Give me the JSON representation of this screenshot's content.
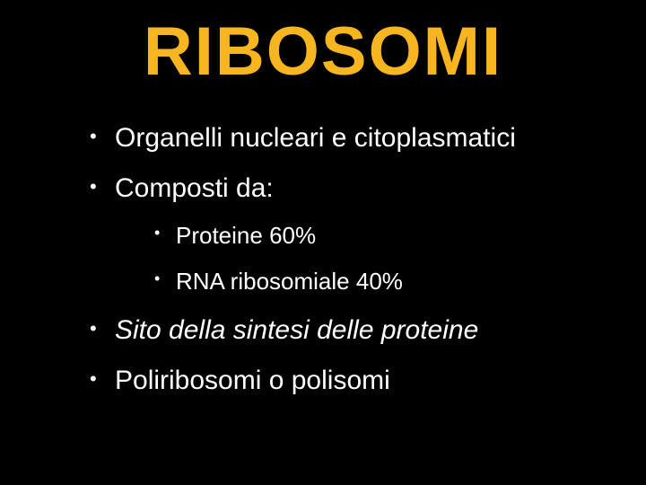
{
  "slide": {
    "background_color": "#000000",
    "title": {
      "text": "RIBOSOMI",
      "color": "#f7b520",
      "fontsize": 76,
      "font_family": "Comic Sans MS",
      "font_weight": "bold",
      "align": "center"
    },
    "body_color": "#ffffff",
    "body_fontsize_l1": 30,
    "body_fontsize_l2": 26,
    "bullets": [
      {
        "text": "Organelli nucleari e citoplasmatici",
        "italic": false,
        "children": []
      },
      {
        "text": "Composti da:",
        "italic": false,
        "children": [
          {
            "text": "Proteine 60%"
          },
          {
            "text": "RNA ribosomiale 40%"
          }
        ]
      },
      {
        "text": "Sito della sintesi delle proteine",
        "italic": true,
        "children": []
      },
      {
        "text": "Poliribosomi o polisomi",
        "italic": false,
        "children": []
      }
    ]
  }
}
